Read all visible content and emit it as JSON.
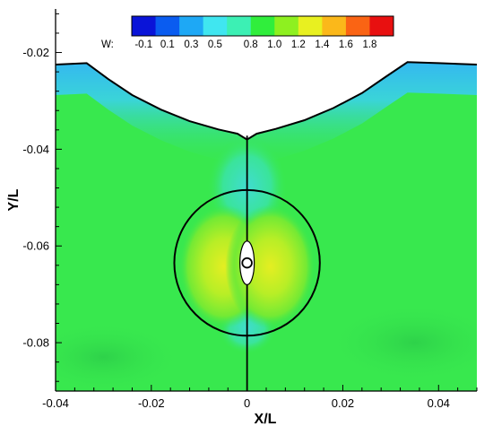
{
  "chart_data": {
    "type": "heatmap",
    "title": "",
    "xlabel": "X/L",
    "ylabel": "Y/L",
    "xlim": [
      -0.04,
      0.048
    ],
    "ylim": [
      -0.09,
      -0.011
    ],
    "x_ticks": [
      {
        "value": -0.04,
        "label": "-0.04"
      },
      {
        "value": -0.02,
        "label": "-0.02"
      },
      {
        "value": 0,
        "label": "0"
      },
      {
        "value": 0.02,
        "label": "0.02"
      },
      {
        "value": 0.04,
        "label": "0.04"
      }
    ],
    "y_ticks": [
      {
        "value": -0.02,
        "label": "-0.02"
      },
      {
        "value": -0.04,
        "label": "-0.04"
      },
      {
        "value": -0.06,
        "label": "-0.06"
      },
      {
        "value": -0.08,
        "label": "-0.08"
      }
    ],
    "grid": false,
    "colorbar": {
      "variable_label": "W:",
      "min": -0.2,
      "max": 2.0,
      "placement": "top-center",
      "levels": [
        -0.1,
        0.1,
        0.3,
        0.5,
        0.8,
        1.0,
        1.2,
        1.4,
        1.6,
        1.8
      ],
      "level_labels": [
        "-0.1",
        "0.1",
        "0.3",
        "0.5",
        "0.8",
        "1.0",
        "1.2",
        "1.4",
        "1.6",
        "1.8"
      ],
      "colors": [
        "#0a14d8",
        "#0a5cf0",
        "#1ea8f5",
        "#40e6f0",
        "#3cf0b4",
        "#30ee3c",
        "#8ef020",
        "#e8f020",
        "#fbb81a",
        "#fa6414",
        "#e81010"
      ]
    },
    "field": {
      "background_value": 0.92,
      "background_color": "#38e84e",
      "free_surface": [
        [
          -0.04,
          -0.0225
        ],
        [
          -0.0335,
          -0.0222
        ],
        [
          -0.029,
          -0.0255
        ],
        [
          -0.024,
          -0.0288
        ],
        [
          -0.018,
          -0.0318
        ],
        [
          -0.012,
          -0.0342
        ],
        [
          -0.006,
          -0.0359
        ],
        [
          -0.002,
          -0.0368
        ],
        [
          0,
          -0.038
        ],
        [
          0.002,
          -0.0368
        ],
        [
          0.006,
          -0.0358
        ],
        [
          0.012,
          -0.034
        ],
        [
          0.018,
          -0.0315
        ],
        [
          0.024,
          -0.0284
        ],
        [
          0.029,
          -0.025
        ],
        [
          0.0335,
          -0.022
        ],
        [
          0.04,
          -0.0222
        ],
        [
          0.048,
          -0.0225
        ]
      ],
      "circle": {
        "center": [
          0,
          -0.0635
        ],
        "radius": 0.0152
      },
      "centerline_x": 0,
      "body": {
        "center": [
          0,
          -0.0635
        ],
        "half_width": 0.0015,
        "half_height": 0.0045,
        "marker_radius": 0.001
      },
      "low_velocity_zone": {
        "value": 0.3,
        "color": "#3ad8e0"
      },
      "high_velocity_zone": {
        "value": 1.3,
        "color": "#d6ee24"
      }
    }
  }
}
